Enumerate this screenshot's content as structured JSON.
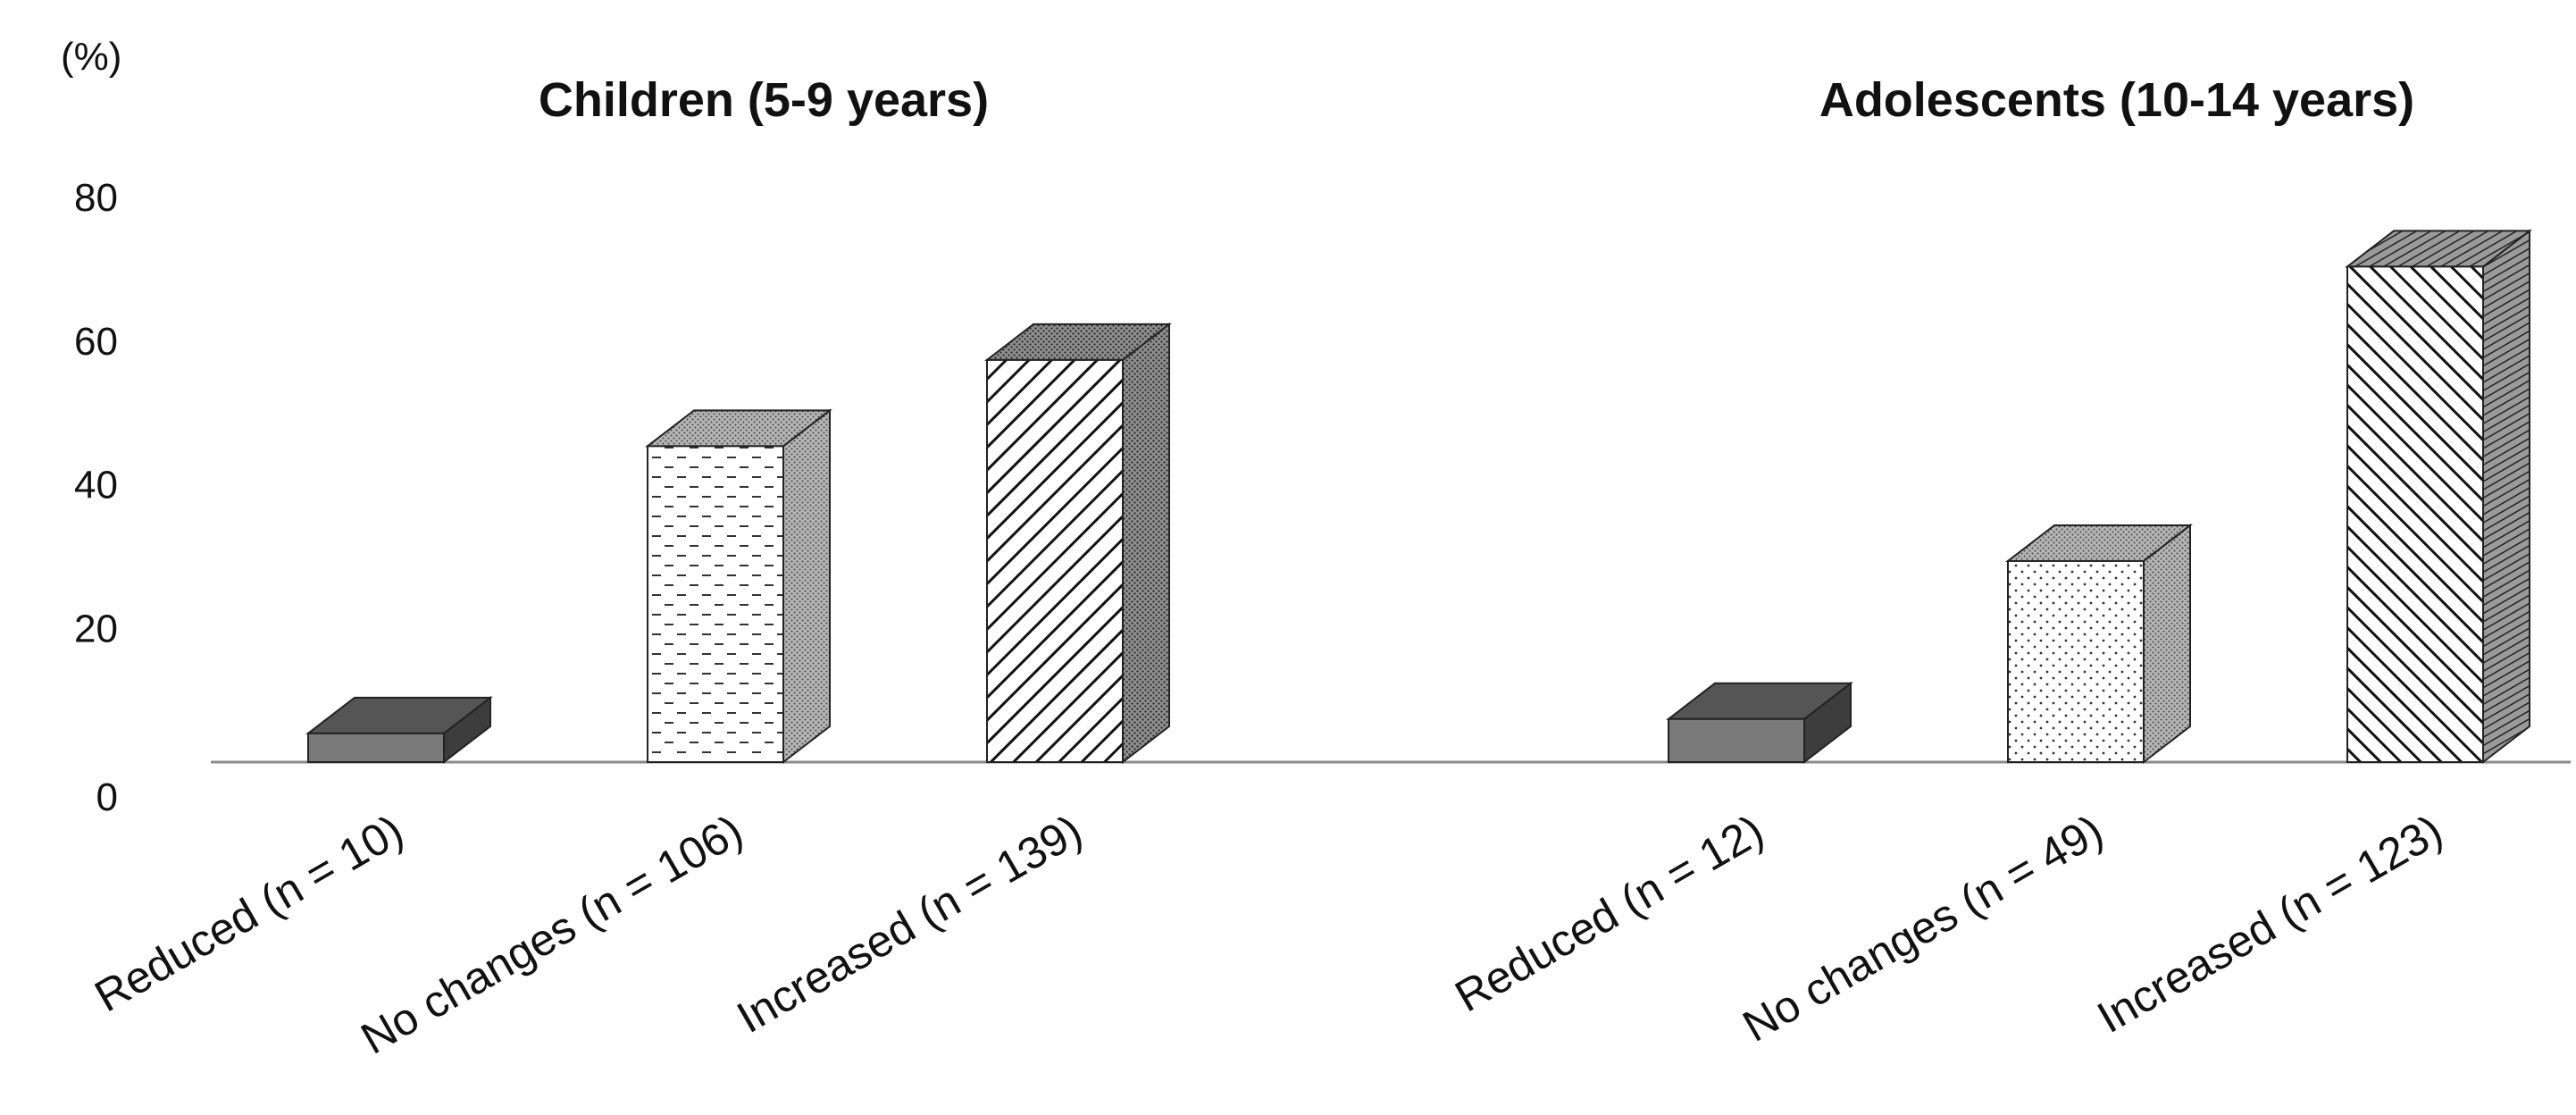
{
  "chart_data": {
    "type": "bar",
    "style": "3d-column",
    "y_unit": "(%)",
    "ylim": [
      0,
      80
    ],
    "yticks": [
      "0",
      "20",
      "40",
      "60",
      "80"
    ],
    "grid": false,
    "legend": "none",
    "panels": [
      {
        "title": "Children (5-9 years)",
        "categories": [
          "Reduced (n = 10)",
          "No changes (n = 106)",
          "Increased (n = 139)"
        ],
        "values": [
          4,
          44,
          56
        ],
        "patterns": [
          "solid-dark",
          "dashes",
          "diagonal-lines"
        ]
      },
      {
        "title": "Adolescents (10-14 years)",
        "categories": [
          "Reduced (n = 12)",
          "No changes (n = 49)",
          "Increased (n = 123)"
        ],
        "values": [
          6,
          28,
          69
        ],
        "patterns": [
          "solid-dark",
          "dots",
          "diagonal-lines-dense"
        ]
      }
    ],
    "colors": {
      "bar_dark": "#7a7a7a",
      "bar_dark_top": "#555555",
      "bar_dark_side": "#3d3d3d",
      "axis": "#8a8a8a"
    }
  }
}
